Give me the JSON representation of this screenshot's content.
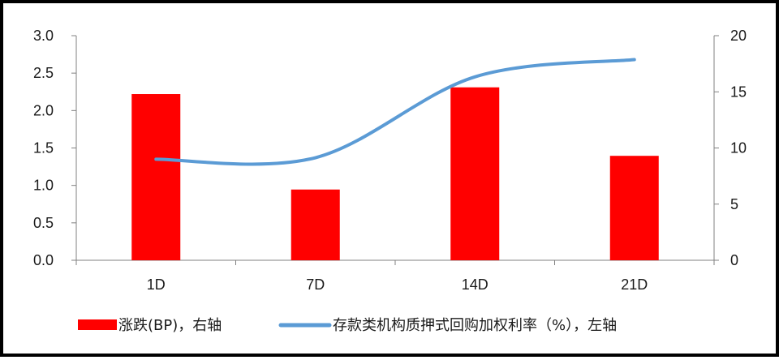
{
  "chart_data": {
    "type": "bar",
    "categories": [
      "1D",
      "7D",
      "14D",
      "21D"
    ],
    "series": [
      {
        "name": "涨跌(BP)，右轴",
        "type": "bar",
        "axis": "right",
        "color": "#ff0000",
        "values": [
          14.8,
          6.3,
          15.4,
          9.3
        ]
      },
      {
        "name": "存款类机构质押式回购加权利率（%），左轴",
        "type": "line",
        "axis": "left",
        "color": "#5b9bd5",
        "values": [
          1.35,
          1.37,
          2.45,
          2.68
        ]
      }
    ],
    "left_axis": {
      "ylim": [
        0,
        3.0
      ],
      "ticks": [
        "0.0",
        "0.5",
        "1.0",
        "1.5",
        "2.0",
        "2.5",
        "3.0"
      ]
    },
    "right_axis": {
      "ylim": [
        0,
        20
      ],
      "ticks": [
        "0",
        "5",
        "10",
        "15",
        "20"
      ]
    },
    "legend_position": "bottom",
    "grid": false
  }
}
